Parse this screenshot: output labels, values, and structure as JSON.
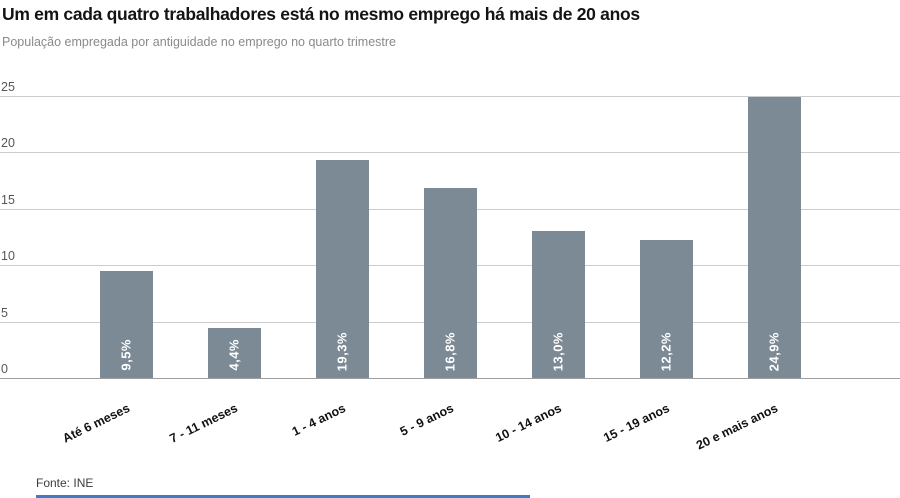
{
  "chart_data": {
    "type": "bar",
    "title": "Um em cada quatro trabalhadores está no mesmo emprego há mais de 20 anos",
    "subtitle": "População empregada por antiguidade no emprego no quarto trimestre",
    "source": "Fonte: INE",
    "categories": [
      "Até 6 meses",
      "7 - 11 meses",
      "1 - 4 anos",
      "5 - 9 anos",
      "10 - 14 anos",
      "15 - 19 anos",
      "20 e mais anos"
    ],
    "values": [
      9.5,
      4.4,
      19.3,
      16.8,
      13.0,
      12.2,
      24.9
    ],
    "value_labels": [
      "9,5%",
      "4,4%",
      "19,3%",
      "16,8%",
      "13,0%",
      "12,2%",
      "24,9%"
    ],
    "xlabel": "",
    "ylabel": "",
    "ylim": [
      0,
      25
    ],
    "yticks": [
      0,
      5,
      10,
      15,
      20,
      25
    ],
    "grid": true,
    "legend": "none",
    "colors": {
      "bar": "#7b8a95",
      "bar_value_label": "#ffffff",
      "gridline": "#cccccc",
      "baseline": "#9e9e9e",
      "accent_line": "#3e7bbf"
    }
  }
}
